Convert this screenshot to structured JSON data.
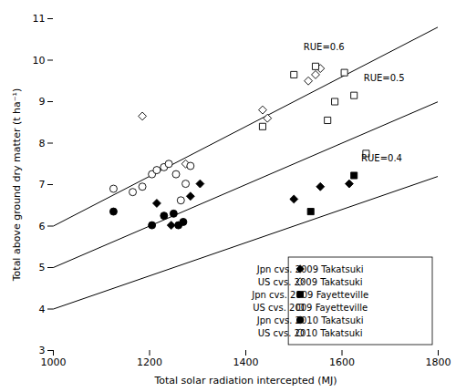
{
  "chart_data": {
    "type": "scatter",
    "xlabel": "Total solar radiation intercepted (MJ)",
    "ylabel": "Total above ground dry matter (t ha⁻¹)",
    "xlim": [
      1000,
      1800
    ],
    "ylim": [
      3,
      11
    ],
    "xticks": [
      1000,
      1200,
      1400,
      1600,
      1800
    ],
    "yticks": [
      3,
      4,
      5,
      6,
      7,
      8,
      9,
      10,
      11
    ],
    "grid": false,
    "legend": "lower right",
    "lines": [
      {
        "x": [
          1000,
          1800
        ],
        "y": [
          4,
          7.2
        ],
        "color": "black"
      },
      {
        "x": [
          1000,
          1800
        ],
        "y": [
          5,
          9
        ],
        "color": "black"
      },
      {
        "x": [
          1000,
          1800
        ],
        "y": [
          6,
          10.8
        ],
        "color": "black"
      }
    ],
    "annotations": [
      {
        "text": "RUE=0.4",
        "x": 1640,
        "y": 7.55
      },
      {
        "text": "RUE=0.5",
        "x": 1645,
        "y": 9.5
      },
      {
        "text": "RUE=0.6",
        "x": 1520,
        "y": 10.25
      }
    ],
    "series": [
      {
        "name": "Jpn cvs. 2009 Takatsuki",
        "marker": "filled-diamond",
        "color": "black",
        "x": [
          1215,
          1245,
          1285,
          1305,
          1500,
          1555,
          1615
        ],
        "values": [
          6.55,
          6.02,
          6.72,
          7.02,
          6.65,
          6.95,
          7.02
        ]
      },
      {
        "name": "US cvs. 2009 Takatsuki",
        "marker": "open-diamond",
        "color": "black",
        "x": [
          1185,
          1275,
          1435,
          1445,
          1530,
          1545,
          1555
        ],
        "values": [
          8.65,
          7.5,
          8.8,
          8.6,
          9.5,
          9.65,
          9.8
        ]
      },
      {
        "name": "Jpn cvs. 2009 Fayetteville",
        "marker": "filled-square",
        "color": "black",
        "x": [
          1535,
          1625
        ],
        "values": [
          6.35,
          7.22
        ]
      },
      {
        "name": "US cvs. 2009 Fayetteville",
        "marker": "open-square",
        "color": "black",
        "x": [
          1435,
          1500,
          1545,
          1570,
          1585,
          1605,
          1625,
          1650
        ],
        "values": [
          8.4,
          9.65,
          9.85,
          8.55,
          9.0,
          9.7,
          9.15,
          7.75
        ]
      },
      {
        "name": "Jpn cvs. 2010 Takatsuki",
        "marker": "filled-circle",
        "color": "black",
        "x": [
          1125,
          1205,
          1230,
          1250,
          1260,
          1270
        ],
        "values": [
          6.35,
          6.02,
          6.25,
          6.3,
          6.02,
          6.1
        ]
      },
      {
        "name": "US cvs. 2010 Takatsuki",
        "marker": "open-circle",
        "color": "black",
        "x": [
          1125,
          1165,
          1185,
          1205,
          1215,
          1230,
          1240,
          1255,
          1265,
          1275,
          1285
        ],
        "values": [
          6.9,
          6.82,
          6.95,
          7.25,
          7.35,
          7.42,
          7.5,
          7.25,
          6.62,
          7.02,
          7.45
        ]
      }
    ]
  }
}
